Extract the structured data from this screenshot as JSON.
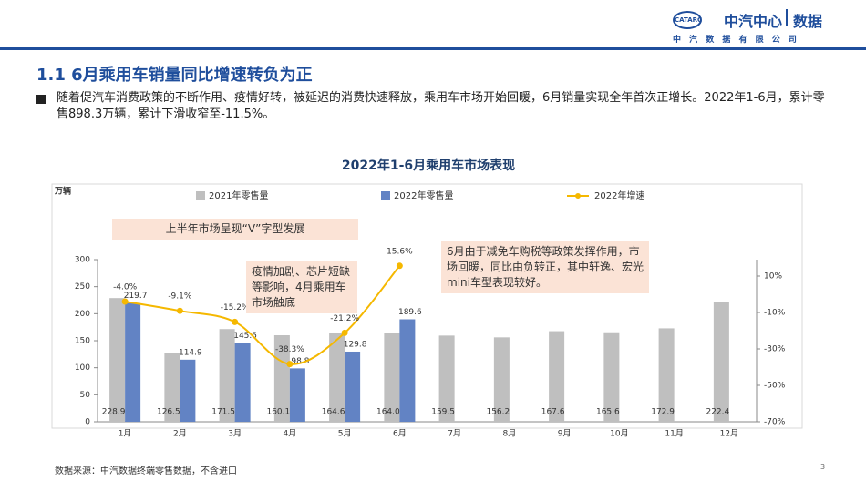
{
  "header": {
    "logo_mark": "CATARC",
    "brand": "中汽中心",
    "brand_sub": "数据",
    "company": "中 汽 数 据 有 限 公 司"
  },
  "slide_title": "1.1 6月乘用车销量同比增速转负为正",
  "bullet": "随着促汽车消费政策的不断作用、疫情好转，被延迟的消费快速释放，乘用车市场开始回暖，6月销量实现全年首次正增长。2022年1-6月，累计零售898.3万辆，累计下滑收窄至-11.5%。",
  "chart_data": {
    "type": "bar",
    "title": "2022年1-6月乘用车市场表现",
    "y_unit": "万辆",
    "categories": [
      "1月",
      "2月",
      "3月",
      "4月",
      "5月",
      "6月",
      "7月",
      "8月",
      "9月",
      "10月",
      "11月",
      "12月"
    ],
    "series": [
      {
        "name": "2021年零售量",
        "type": "bar",
        "color": "#bfbfbf",
        "values": [
          228.9,
          126.5,
          171.5,
          160.1,
          164.6,
          164.0,
          159.5,
          156.2,
          167.6,
          165.6,
          172.9,
          222.4
        ],
        "value_labels": [
          "228.9",
          "126.5",
          "171.5",
          "160.1",
          "164.6",
          "164.0",
          "159.5",
          "156.2",
          "167.6",
          "165.6",
          "172.9",
          "222.4"
        ]
      },
      {
        "name": "2022年零售量",
        "type": "bar",
        "color": "#6283c4",
        "values": [
          219.7,
          114.9,
          145.5,
          98.8,
          129.8,
          189.6,
          null,
          null,
          null,
          null,
          null,
          null
        ],
        "value_labels": [
          "219.7",
          "114.9",
          "145.5",
          "98.8",
          "129.8",
          "189.6",
          null,
          null,
          null,
          null,
          null,
          null
        ]
      },
      {
        "name": "2022年增速",
        "type": "line",
        "axis": "y2",
        "color": "#f5b800",
        "values": [
          -4.0,
          -9.1,
          -15.2,
          -38.3,
          -21.2,
          15.6,
          null,
          null,
          null,
          null,
          null,
          null
        ],
        "value_labels": [
          "-4.0%",
          "-9.1%",
          "-15.2%",
          "-38.3%",
          "-21.2%",
          "15.6%",
          null,
          null,
          null,
          null,
          null,
          null
        ]
      }
    ],
    "ylim": [
      0,
      300
    ],
    "yticks": [
      0,
      50,
      100,
      150,
      200,
      250,
      300
    ],
    "y2lim": [
      -70,
      19
    ],
    "y2ticks": [
      {
        "value": 10,
        "label": "10%"
      },
      {
        "value": -10,
        "label": "-10%"
      },
      {
        "value": -30,
        "label": "-30%"
      },
      {
        "value": -50,
        "label": "-50%"
      },
      {
        "value": -70,
        "label": "-70%"
      }
    ],
    "annotations": [
      "上半年市场呈现“V”字型发展",
      "疫情加剧、芯片短缺等影响，4月乘用车市场触底",
      "6月由于减免车购税等政策发挥作用，市场回暖，同比由负转正，其中轩逸、宏光mini车型表现较好。"
    ]
  },
  "footer": {
    "source": "数据来源：中汽数据终端零售数据，不含进口",
    "page": "3"
  }
}
